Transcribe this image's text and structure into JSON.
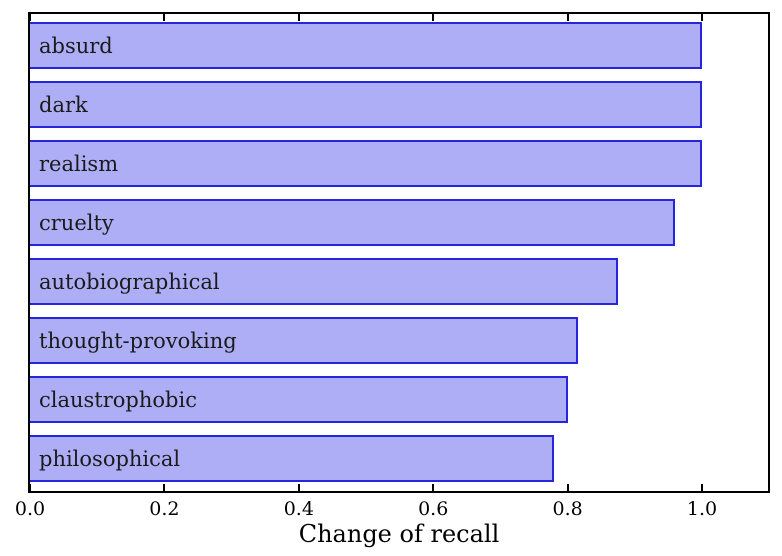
{
  "chart_data": {
    "type": "bar",
    "orientation": "horizontal",
    "title": "",
    "xlabel": "Change of recall",
    "ylabel": "",
    "categories": [
      "absurd",
      "dark",
      "realism",
      "cruelty",
      "autobiographical",
      "thought-provoking",
      "claustrophobic",
      "philosophical"
    ],
    "values": [
      1.0,
      1.0,
      1.0,
      0.96,
      0.875,
      0.815,
      0.8,
      0.78
    ],
    "x_ticks": [
      0.0,
      0.2,
      0.4,
      0.6,
      0.8,
      1.0
    ],
    "x_tick_labels": [
      "0.0",
      "0.2",
      "0.4",
      "0.6",
      "0.8",
      "1.0"
    ],
    "xlim": [
      0.0,
      1.1
    ],
    "grid": false,
    "legend": null,
    "bar_labels_inside": true,
    "tick_direction": "in",
    "colors": {
      "bar_fill": "#aeaef6",
      "bar_edge": "#2525dd",
      "axis": "#000000",
      "text": "#1a1a1a",
      "background": "#ffffff"
    }
  }
}
